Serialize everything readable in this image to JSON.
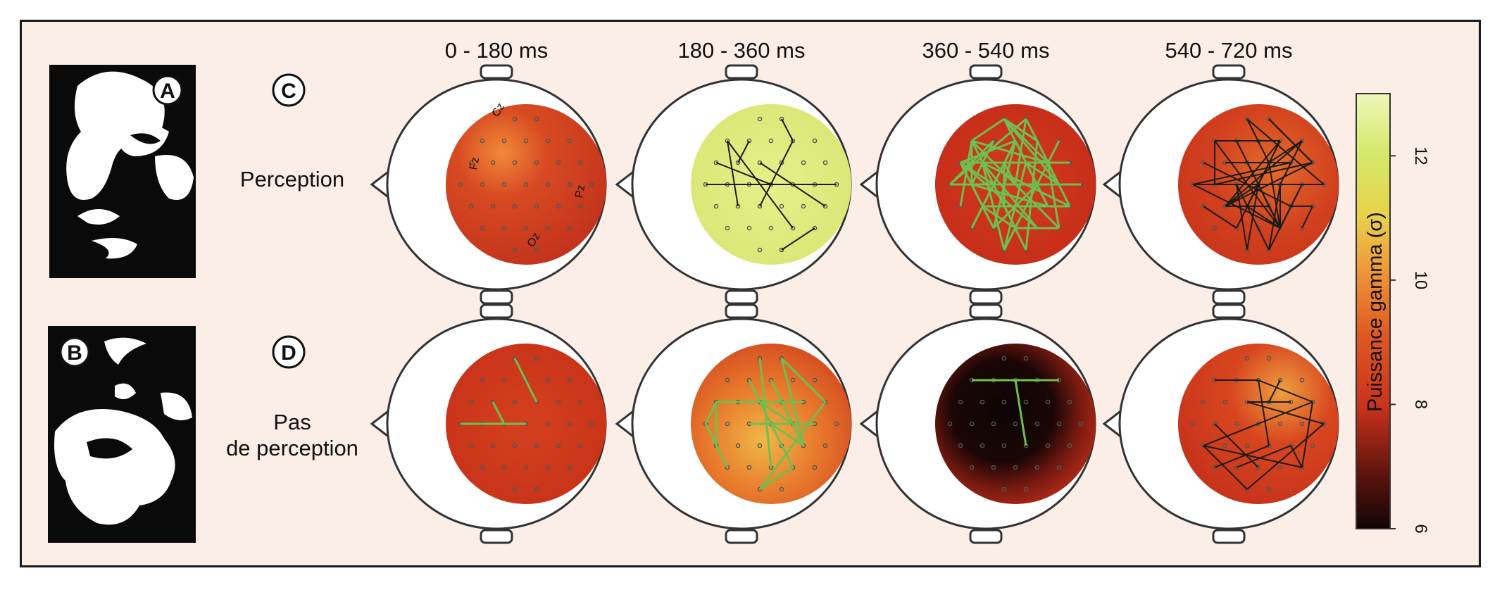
{
  "panel_letters": {
    "a": "A",
    "b": "B",
    "c": "C",
    "d": "D"
  },
  "rows": {
    "perception": {
      "label": "Perception"
    },
    "no_perception": {
      "label_line1": "Pas",
      "label_line2": "de perception"
    }
  },
  "time_windows": [
    "0 - 180 ms",
    "180 - 360 ms",
    "360 - 540 ms",
    "540 - 720 ms"
  ],
  "electrode_labels": [
    "Fz",
    "Cz",
    "Pz",
    "Oz"
  ],
  "colorbar": {
    "label": "Puissance gamma (σ)",
    "ticks": [
      "6",
      "8",
      "10",
      "12"
    ],
    "range": [
      6,
      13
    ],
    "colors": [
      "#120606",
      "#5a120c",
      "#c8321c",
      "#e05a22",
      "#ef9a3a",
      "#e8d24a",
      "#d4e86a",
      "#eef7b8"
    ]
  },
  "maps": {
    "perception": [
      {
        "level": 7.4,
        "edge": "none"
      },
      {
        "level": 11.8,
        "edge": "black"
      },
      {
        "level": 7.6,
        "edge": "green"
      },
      {
        "level": 7.5,
        "edge": "black"
      }
    ],
    "no_perception": [
      {
        "level": 7.3,
        "edge": "green"
      },
      {
        "level": 8.5,
        "edge": "green"
      },
      {
        "level": 6.2,
        "edge": "green"
      },
      {
        "level": 7.6,
        "edge": "black"
      }
    ]
  },
  "colors": {
    "background": "#fbeee6",
    "frame": "#1a1a1a",
    "edge_green": "#6fbf4f",
    "edge_black": "#1b1b1b"
  }
}
